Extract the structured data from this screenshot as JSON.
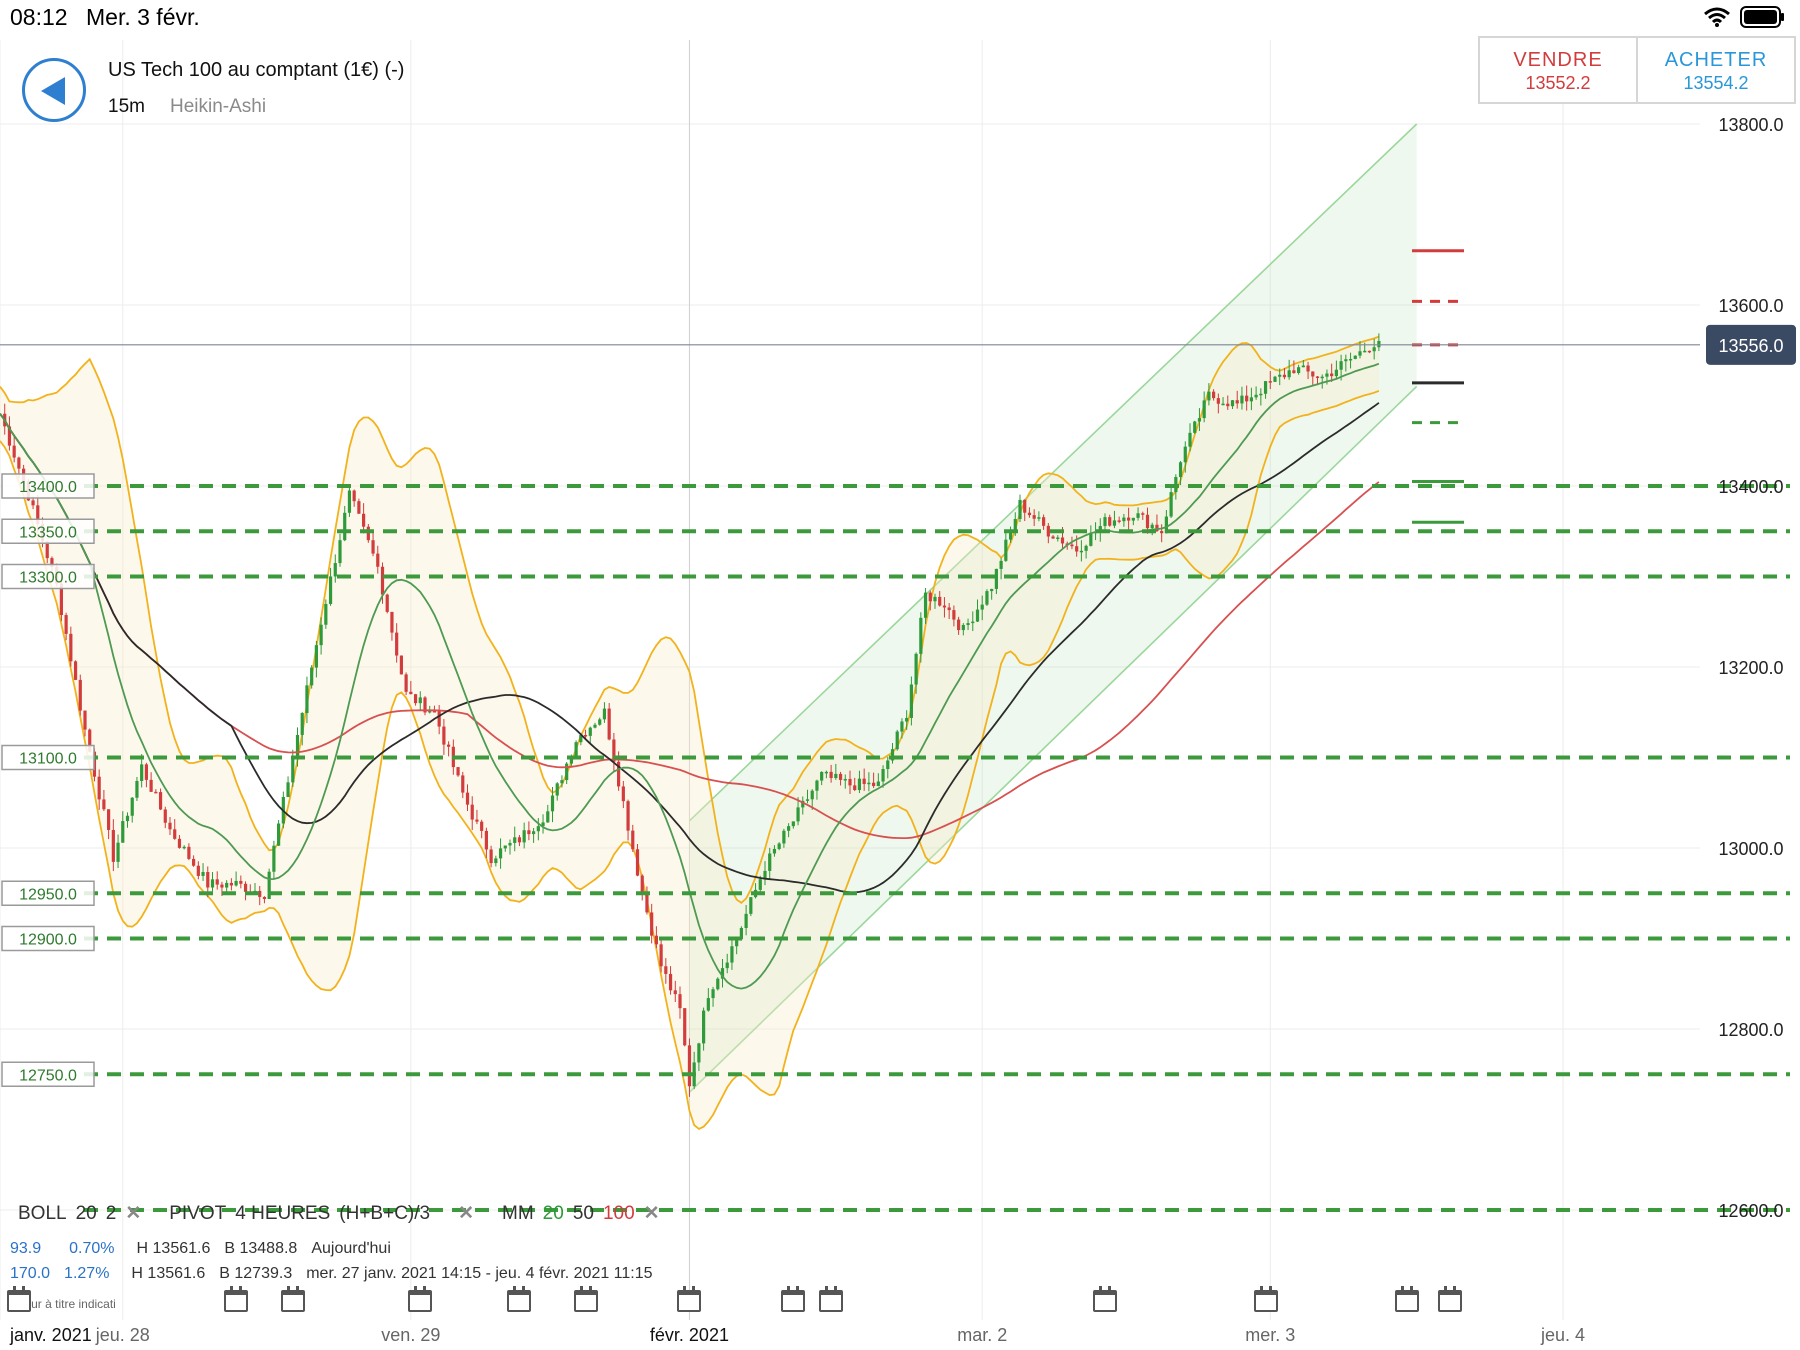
{
  "status_bar": {
    "time": "08:12",
    "date": "Mer. 3 févr.",
    "wifi_icon": "wifi-icon",
    "battery_icon": "battery-icon"
  },
  "header": {
    "back_icon": "back-arrow-icon",
    "instrument": "US Tech 100 au comptant (1€) (-)",
    "timeframe": "15m",
    "chart_style": "Heikin-Ashi"
  },
  "trade": {
    "sell_label": "VENDRE",
    "sell_price": "13552.2",
    "buy_label": "ACHETER",
    "buy_price": "13554.2"
  },
  "indicators": {
    "boll_name": "BOLL",
    "boll_period": "20",
    "boll_dev": "2",
    "pivot_name": "PIVOT",
    "pivot_period": "4 HEURES",
    "pivot_formula": "(H+B+C)/3",
    "mm_name": "MM",
    "mm_20": "20",
    "mm_50": "50",
    "mm_100": "100"
  },
  "info_rows": [
    {
      "change": "93.9",
      "pct": "0.70%",
      "high": "H 13561.6",
      "low": "B 13488.8",
      "period": "Aujourd'hui"
    },
    {
      "change": "170.0",
      "pct": "1.27%",
      "high": "H 13561.6",
      "low": "B 12739.3",
      "period": "mer. 27 janv. 2021 14:15 - jeu. 4 févr. 2021 11:15"
    }
  ],
  "footnote": "Valeur à titre indicati",
  "colors": {
    "up": "#2e9a3a",
    "down": "#d23c3c",
    "boll": "#f2b21c",
    "mm20": "#4e9a52",
    "mm50": "#2b2b2b",
    "mm100": "#d85050",
    "level": "#3c9a3c",
    "channel": "#9bd79b",
    "accent": "#2f7fd0"
  },
  "chart_data": {
    "type": "candlestick",
    "title": "US Tech 100 au comptant (1€) (-)",
    "timeframe": "15m",
    "ylim": [
      12580,
      13830
    ],
    "yticks": [
      {
        "value": 13800,
        "label": "13800.0"
      },
      {
        "value": 13600,
        "label": "13600.0"
      },
      {
        "value": 13400,
        "label": "13400.0"
      },
      {
        "value": 13200,
        "label": "13200.0"
      },
      {
        "value": 13000,
        "label": "13000.0"
      },
      {
        "value": 12800,
        "label": "12800.0"
      },
      {
        "value": 12600,
        "label": "12600.0"
      }
    ],
    "current_price": {
      "value": 13556,
      "label": "13556.0"
    },
    "horizontal_levels": [
      {
        "value": 13400,
        "label": "13400.0"
      },
      {
        "value": 13350,
        "label": "13350.0"
      },
      {
        "value": 13300,
        "label": "13300.0"
      },
      {
        "value": 13100,
        "label": "13100.0"
      },
      {
        "value": 12950,
        "label": "12950.0"
      },
      {
        "value": 12900,
        "label": "12900.0"
      },
      {
        "value": 12750,
        "label": "12750.0"
      },
      {
        "value": 12600,
        "label": "12600.0"
      }
    ],
    "x_range": [
      0,
      180
    ],
    "x_labels": [
      {
        "x": 0,
        "label": "janv. 2021"
      },
      {
        "x": 13,
        "label": "jeu. 28"
      },
      {
        "x": 43.5,
        "label": "ven. 29"
      },
      {
        "x": 73,
        "label": "févr. 2021"
      },
      {
        "x": 104,
        "label": "mar. 2"
      },
      {
        "x": 134.5,
        "label": "mer. 3"
      },
      {
        "x": 165.5,
        "label": "jeu. 4"
      }
    ],
    "event_markers": [
      2,
      25,
      31,
      44.5,
      55,
      62,
      73,
      84,
      88,
      117,
      134,
      149,
      153.5
    ],
    "channel": {
      "start": [
        73,
        12730,
        13030
      ],
      "end": [
        150,
        13510,
        13800
      ]
    },
    "pivot_marks": [
      {
        "value": 13660,
        "color": "red",
        "style": "solid"
      },
      {
        "value": 13604,
        "color": "red",
        "style": "dashed"
      },
      {
        "value": 13556,
        "color": "red",
        "style": "dashed"
      },
      {
        "value": 13514,
        "color": "dark",
        "style": "solid"
      },
      {
        "value": 13470,
        "color": "green",
        "style": "dashed"
      },
      {
        "value": 13405,
        "color": "green",
        "style": "solid"
      },
      {
        "value": 13360,
        "color": "green",
        "style": "solid"
      }
    ],
    "price_path": [
      [
        0,
        13480
      ],
      [
        3,
        13390
      ],
      [
        6,
        13290
      ],
      [
        9,
        13130
      ],
      [
        12,
        12990
      ],
      [
        15,
        13090
      ],
      [
        18,
        13020
      ],
      [
        22,
        12960
      ],
      [
        25,
        12960
      ],
      [
        28,
        12950
      ],
      [
        31,
        13100
      ],
      [
        34,
        13250
      ],
      [
        37,
        13390
      ],
      [
        40,
        13310
      ],
      [
        43,
        13170
      ],
      [
        46,
        13150
      ],
      [
        49,
        13060
      ],
      [
        52,
        12990
      ],
      [
        55,
        13010
      ],
      [
        58,
        13040
      ],
      [
        61,
        13120
      ],
      [
        64,
        13150
      ],
      [
        66,
        13050
      ],
      [
        68,
        12950
      ],
      [
        70,
        12870
      ],
      [
        72,
        12820
      ],
      [
        73,
        12740
      ],
      [
        75,
        12840
      ],
      [
        78,
        12900
      ],
      [
        81,
        12980
      ],
      [
        84,
        13030
      ],
      [
        87,
        13080
      ],
      [
        90,
        13070
      ],
      [
        93,
        13070
      ],
      [
        96,
        13150
      ],
      [
        98,
        13280
      ],
      [
        100,
        13270
      ],
      [
        102,
        13240
      ],
      [
        105,
        13290
      ],
      [
        108,
        13380
      ],
      [
        111,
        13350
      ],
      [
        114,
        13330
      ],
      [
        117,
        13360
      ],
      [
        120,
        13370
      ],
      [
        123,
        13350
      ],
      [
        125,
        13430
      ],
      [
        128,
        13500
      ],
      [
        131,
        13490
      ],
      [
        134,
        13510
      ],
      [
        137,
        13530
      ],
      [
        140,
        13520
      ],
      [
        143,
        13540
      ],
      [
        146,
        13562
      ]
    ],
    "series": [
      {
        "name": "BOLL 20 2",
        "color": "#f2b21c"
      },
      {
        "name": "MM 20",
        "color": "#4e9a52"
      },
      {
        "name": "MM 50",
        "color": "#2b2b2b"
      },
      {
        "name": "MM 100",
        "color": "#d85050"
      }
    ]
  }
}
